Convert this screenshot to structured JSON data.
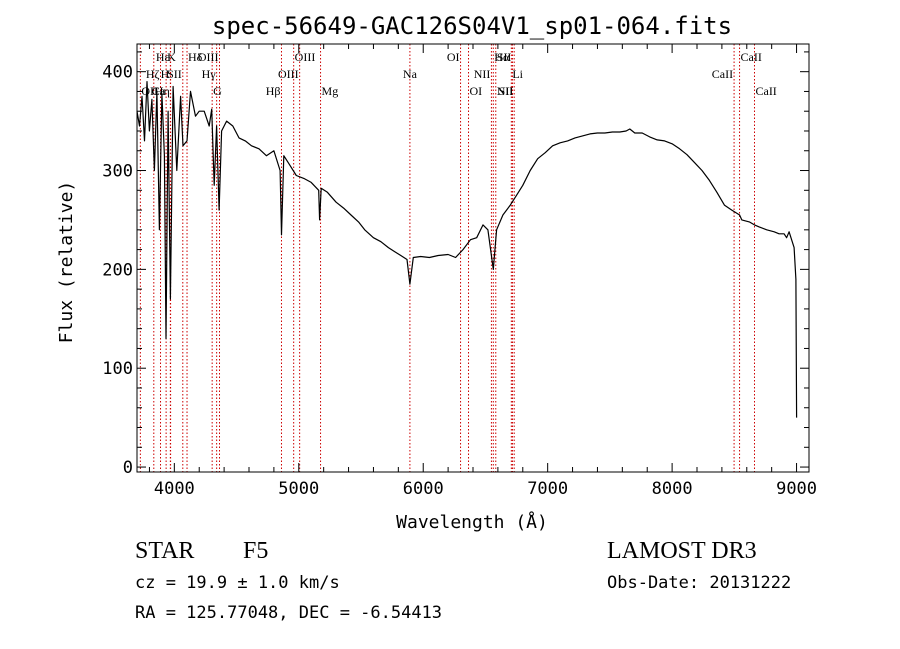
{
  "chart_data": {
    "type": "line",
    "title": "spec-56649-GAC126S04V1_sp01-064.fits",
    "xlabel": "Wavelength (Å)",
    "ylabel": "Flux (relative)",
    "xlim": [
      3700,
      9100
    ],
    "ylim": [
      -5,
      428
    ],
    "xticks": [
      4000,
      5000,
      6000,
      7000,
      8000,
      9000
    ],
    "xtick_labels": [
      "4000",
      "5000",
      "6000",
      "7000",
      "8000",
      "9000"
    ],
    "yticks": [
      0,
      100,
      200,
      300,
      400
    ],
    "ytick_labels": [
      "0",
      "100",
      "200",
      "300",
      "400"
    ],
    "series": [
      {
        "name": "flux",
        "x": [
          3700,
          3720,
          3740,
          3760,
          3780,
          3800,
          3820,
          3840,
          3860,
          3880,
          3900,
          3920,
          3933,
          3950,
          3968,
          3990,
          4020,
          4050,
          4070,
          4102,
          4130,
          4170,
          4200,
          4240,
          4280,
          4300,
          4320,
          4340,
          4360,
          4380,
          4420,
          4470,
          4520,
          4570,
          4620,
          4680,
          4740,
          4800,
          4850,
          4861,
          4880,
          4930,
          4980,
          5040,
          5100,
          5160,
          5167,
          5180,
          5230,
          5300,
          5360,
          5420,
          5480,
          5530,
          5600,
          5660,
          5720,
          5770,
          5820,
          5870,
          5893,
          5920,
          5980,
          6050,
          6120,
          6200,
          6260,
          6320,
          6380,
          6430,
          6480,
          6520,
          6563,
          6590,
          6640,
          6700,
          6750,
          6800,
          6860,
          6920,
          6980,
          7040,
          7100,
          7160,
          7220,
          7280,
          7340,
          7400,
          7460,
          7520,
          7580,
          7630,
          7660,
          7700,
          7760,
          7820,
          7880,
          7940,
          8000,
          8060,
          8120,
          8180,
          8240,
          8300,
          8360,
          8420,
          8480,
          8542,
          8560,
          8620,
          8662,
          8700,
          8760,
          8820,
          8860,
          8900,
          8920,
          8940,
          8960,
          8980,
          8995,
          9000
        ],
        "y": [
          360,
          345,
          375,
          330,
          390,
          340,
          372,
          300,
          380,
          240,
          378,
          315,
          130,
          360,
          170,
          385,
          300,
          375,
          325,
          330,
          380,
          355,
          360,
          360,
          345,
          362,
          285,
          345,
          260,
          340,
          350,
          345,
          333,
          330,
          325,
          322,
          315,
          320,
          300,
          235,
          315,
          305,
          295,
          292,
          288,
          280,
          250,
          282,
          278,
          268,
          262,
          255,
          248,
          240,
          232,
          228,
          222,
          218,
          214,
          210,
          185,
          212,
          213,
          212,
          214,
          215,
          212,
          220,
          230,
          232,
          245,
          240,
          200,
          240,
          255,
          265,
          275,
          285,
          300,
          312,
          318,
          325,
          328,
          330,
          333,
          335,
          337,
          338,
          338,
          339,
          339,
          340,
          342,
          338,
          338,
          334,
          331,
          330,
          327,
          322,
          316,
          308,
          300,
          290,
          278,
          265,
          260,
          255,
          250,
          248,
          245,
          243,
          240,
          238,
          236,
          236,
          232,
          238,
          230,
          222,
          190,
          50
        ]
      }
    ],
    "line_labels": [
      {
        "text": "Hε",
        "x": 3970,
        "tier": 0,
        "side": "left"
      },
      {
        "text": "K",
        "x": 3934,
        "tier": 0,
        "side": "right"
      },
      {
        "text": "Hδ",
        "x": 4102,
        "tier": 0,
        "side": "right"
      },
      {
        "text": "OIII",
        "x": 4363,
        "tier": 0,
        "side": "left"
      },
      {
        "text": "OIII",
        "x": 4959,
        "tier": 0,
        "side": "right"
      },
      {
        "text": "OI",
        "x": 6300,
        "tier": 0,
        "side": "left"
      },
      {
        "text": "Hα",
        "x": 6563,
        "tier": 0,
        "side": "right"
      },
      {
        "text": "SII",
        "x": 6717,
        "tier": 0,
        "side": "left"
      },
      {
        "text": "CaII",
        "x": 8542,
        "tier": 0,
        "side": "right"
      },
      {
        "text": "Hζ",
        "x": 3889,
        "tier": 1,
        "side": "left"
      },
      {
        "text": "H",
        "x": 3968,
        "tier": 1,
        "side": "left"
      },
      {
        "text": "SII",
        "x": 4068,
        "tier": 1,
        "side": "left"
      },
      {
        "text": "Hγ",
        "x": 4340,
        "tier": 1,
        "side": "left"
      },
      {
        "text": "OIII",
        "x": 5007,
        "tier": 1,
        "side": "left"
      },
      {
        "text": "Na",
        "x": 5893,
        "tier": 1,
        "side": "center"
      },
      {
        "text": "NII",
        "x": 6548,
        "tier": 1,
        "side": "left"
      },
      {
        "text": "Li",
        "x": 6708,
        "tier": 1,
        "side": "right"
      },
      {
        "text": "CaII",
        "x": 8498,
        "tier": 1,
        "side": "left"
      },
      {
        "text": "OII",
        "x": 3727,
        "tier": 2,
        "side": "right"
      },
      {
        "text": "Hη",
        "x": 3835,
        "tier": 2,
        "side": "right"
      },
      {
        "text": "Ca",
        "x": 3934,
        "tier": 2,
        "side": "left"
      },
      {
        "text": "G",
        "x": 4304,
        "tier": 2,
        "side": "right"
      },
      {
        "text": "Hβ",
        "x": 4861,
        "tier": 2,
        "side": "left"
      },
      {
        "text": "Mg",
        "x": 5175,
        "tier": 2,
        "side": "right"
      },
      {
        "text": "OI",
        "x": 6364,
        "tier": 2,
        "side": "right"
      },
      {
        "text": "NII",
        "x": 6583,
        "tier": 2,
        "side": "right"
      },
      {
        "text": "SII",
        "x": 6731,
        "tier": 2,
        "side": "left"
      },
      {
        "text": "CaII",
        "x": 8662,
        "tier": 2,
        "side": "right"
      }
    ],
    "line_markers": [
      3727,
      3835,
      3889,
      3934,
      3968,
      3970,
      4068,
      4102,
      4304,
      4340,
      4363,
      4861,
      4959,
      5007,
      5175,
      5893,
      6300,
      6364,
      6548,
      6563,
      6583,
      6708,
      6717,
      6731,
      8498,
      8542,
      8662
    ],
    "colors": {
      "spectrum": "#000000",
      "line_marker": "#cc0000",
      "axes": "#000000"
    }
  },
  "info": {
    "class_label": "STAR",
    "subclass_label": "F5",
    "survey": "LAMOST DR3",
    "cz": "cz = 19.9 ± 1.0 km/s",
    "obs_date": "Obs-Date: 20131222",
    "coords": "RA = 125.77048, DEC =  -6.54413"
  }
}
